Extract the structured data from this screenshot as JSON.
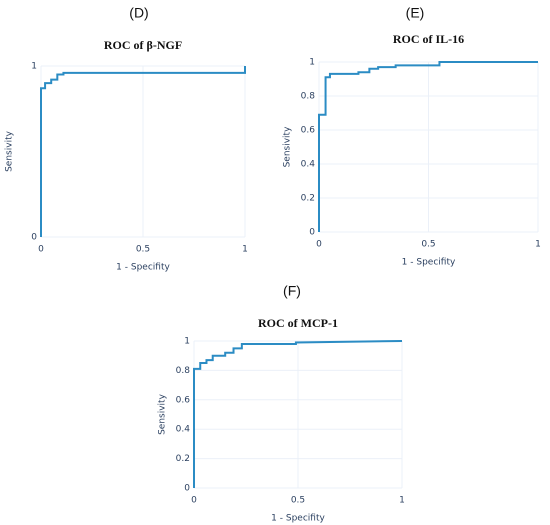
{
  "chart_data": [
    {
      "type": "line",
      "panel_label": "(D)",
      "title": "ROC of β-NGF",
      "xlabel": "1 - Specifity",
      "ylabel": "Sensivity",
      "x": [
        0,
        0,
        0.02,
        0.02,
        0.05,
        0.05,
        0.08,
        0.08,
        0.11,
        0.11,
        1,
        1
      ],
      "series": [
        {
          "color": "#2b8cc4",
          "values": [
            0,
            0.87,
            0.87,
            0.9,
            0.9,
            0.92,
            0.92,
            0.95,
            0.95,
            0.96,
            0.96,
            1
          ]
        }
      ],
      "xlim": [
        0,
        1
      ],
      "ylim": [
        0,
        1
      ],
      "xticks": [
        0,
        0.5,
        1
      ],
      "yticks": [
        0,
        1
      ],
      "grid": true
    },
    {
      "type": "line",
      "panel_label": "(E)",
      "title": "ROC of IL-16",
      "xlabel": "1 - Specifity",
      "ylabel": "Sensivity",
      "x": [
        0,
        0,
        0.03,
        0.03,
        0.05,
        0.05,
        0.18,
        0.18,
        0.23,
        0.23,
        0.27,
        0.27,
        0.35,
        0.35,
        0.55,
        0.55,
        1
      ],
      "series": [
        {
          "color": "#2b8cc4",
          "values": [
            0,
            0.69,
            0.69,
            0.91,
            0.91,
            0.93,
            0.93,
            0.94,
            0.94,
            0.96,
            0.96,
            0.97,
            0.97,
            0.98,
            0.98,
            1,
            1
          ]
        }
      ],
      "xlim": [
        0,
        1
      ],
      "ylim": [
        0,
        1
      ],
      "xticks": [
        0,
        0.5,
        1
      ],
      "yticks": [
        0,
        0.2,
        0.4,
        0.6,
        0.8,
        1
      ],
      "grid": true
    },
    {
      "type": "line",
      "panel_label": "(F)",
      "title": "ROC of MCP-1",
      "xlabel": "1 - Specifity",
      "ylabel": "Sensivity",
      "x": [
        0,
        0,
        0.03,
        0.03,
        0.06,
        0.06,
        0.09,
        0.09,
        0.15,
        0.15,
        0.19,
        0.19,
        0.23,
        0.23,
        0.49,
        0.49,
        1
      ],
      "series": [
        {
          "color": "#2b8cc4",
          "values": [
            0,
            0.81,
            0.81,
            0.85,
            0.85,
            0.87,
            0.87,
            0.9,
            0.9,
            0.92,
            0.92,
            0.95,
            0.95,
            0.98,
            0.98,
            0.99,
            1
          ]
        }
      ],
      "xlim": [
        0,
        1
      ],
      "ylim": [
        0,
        1
      ],
      "xticks": [
        0,
        0.5,
        1
      ],
      "yticks": [
        0,
        0.2,
        0.4,
        0.6,
        0.8,
        1
      ],
      "grid": true
    }
  ]
}
